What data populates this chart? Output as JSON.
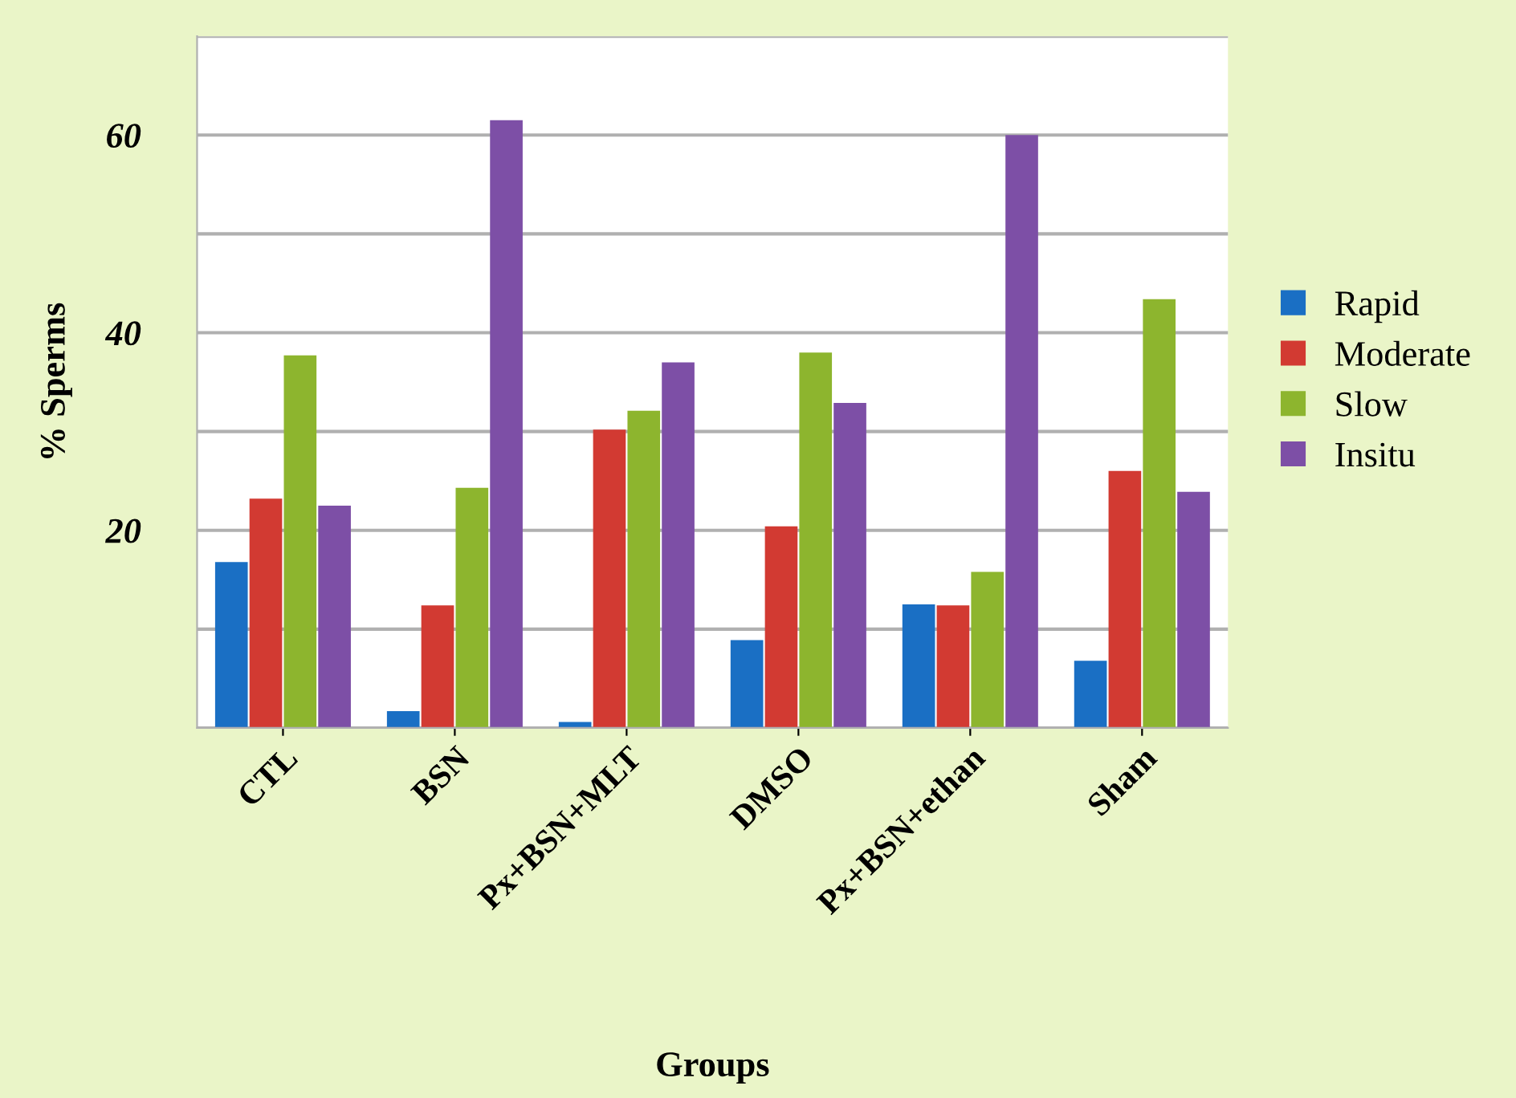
{
  "chart_data": {
    "type": "bar",
    "xlabel": "Groups",
    "ylabel": "% Sperms",
    "categories": [
      "CTL",
      "BSN",
      "Px+BSN+MLT",
      "DMSO",
      "Px+BSN+ethan",
      "Sham"
    ],
    "series": [
      {
        "name": "Rapid",
        "color": "#1a6fc4",
        "values": [
          16.8,
          1.7,
          0.6,
          8.9,
          12.5,
          6.8
        ]
      },
      {
        "name": "Moderate",
        "color": "#d23a32",
        "values": [
          23.2,
          12.4,
          30.2,
          20.4,
          12.4,
          26.0
        ]
      },
      {
        "name": "Slow",
        "color": "#8db52e",
        "values": [
          37.7,
          24.3,
          32.1,
          38.0,
          15.8,
          43.4
        ]
      },
      {
        "name": "Insitu",
        "color": "#7d4fa6",
        "values": [
          22.5,
          61.5,
          37.0,
          32.9,
          60.0,
          23.9
        ]
      }
    ],
    "ylim": [
      0,
      70
    ],
    "yticks": [
      {
        "value": 0,
        "label": null
      },
      {
        "value": 10,
        "label": null
      },
      20,
      {
        "value": 30,
        "label": null
      },
      40,
      {
        "value": 50,
        "label": null
      },
      60,
      {
        "value": 70,
        "label": null
      }
    ],
    "grid": "y",
    "legend": "right"
  }
}
